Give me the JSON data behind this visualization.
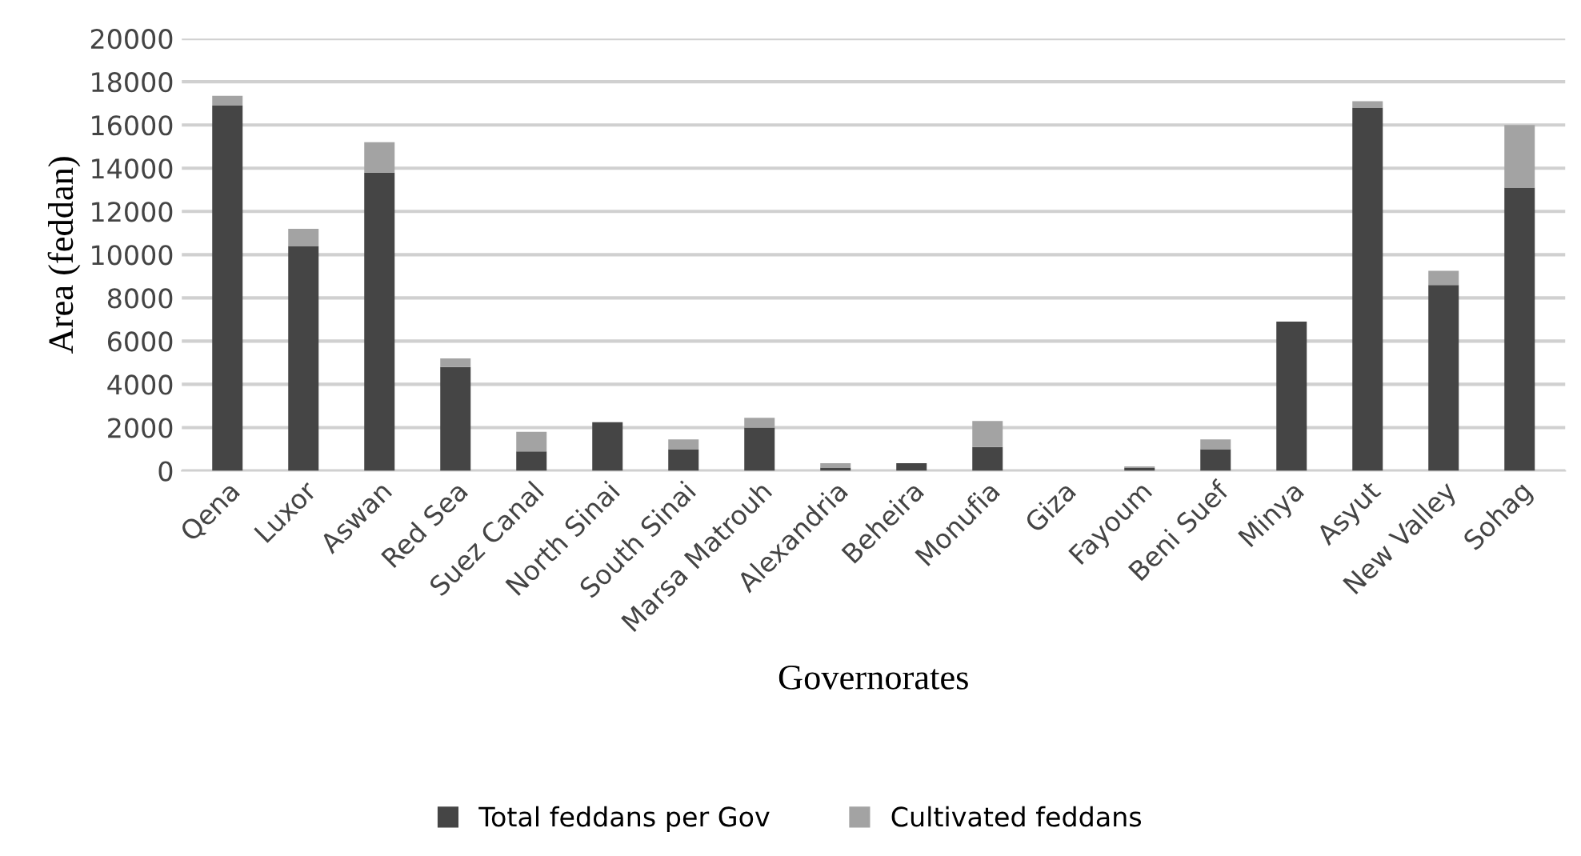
{
  "chart_data": {
    "type": "bar",
    "stacked": true,
    "xlabel": "Governorates",
    "ylabel": "Area (feddan)",
    "categories": [
      "Qena",
      "Luxor",
      "Aswan",
      "Red Sea",
      "Suez Canal",
      "North Sinai",
      "South Sinai",
      "Marsa Matrouh",
      "Alexandria",
      "Beheira",
      "Monufia",
      "Giza",
      "Fayoum",
      "Beni Suef",
      "Minya",
      "Asyut",
      "New Valley",
      "Sohag"
    ],
    "series": [
      {
        "name": "Total feddans per Gov",
        "color": "#454545",
        "values": [
          16900,
          10400,
          13800,
          4800,
          900,
          2250,
          1000,
          2000,
          150,
          350,
          1100,
          0,
          150,
          1000,
          6900,
          16800,
          8600,
          13100
        ]
      },
      {
        "name": "Cultivated feddans",
        "color": "#a3a3a3",
        "values": [
          450,
          800,
          1400,
          400,
          900,
          0,
          450,
          450,
          200,
          0,
          1200,
          0,
          50,
          450,
          0,
          300,
          650,
          2900
        ]
      }
    ],
    "ylim": [
      0,
      20000
    ],
    "yticks": [
      0,
      2000,
      4000,
      6000,
      8000,
      10000,
      12000,
      14000,
      16000,
      18000,
      20000
    ],
    "grid": "y",
    "legend": "bottom"
  }
}
